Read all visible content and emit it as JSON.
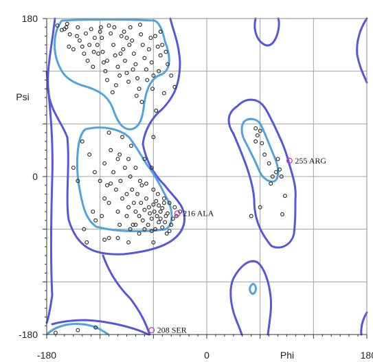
{
  "chart_data": {
    "type": "scatter",
    "title": "",
    "xlabel": "Phi",
    "ylabel": "Psi",
    "xlim": [
      -180,
      180
    ],
    "ylim": [
      -180,
      180
    ],
    "x_tick_labels": [
      {
        "value": -180,
        "label": "-180"
      },
      {
        "value": 0,
        "label": "0"
      },
      {
        "value": 180,
        "label": "180"
      }
    ],
    "y_tick_labels": [
      {
        "value": 180,
        "label": "180"
      },
      {
        "value": 0,
        "label": "0"
      },
      {
        "value": -180,
        "label": "-180"
      }
    ],
    "grid": true,
    "gridlines": [
      -120,
      -60,
      0,
      60,
      120
    ],
    "colors": {
      "favoured_contour": "#4fa3e0",
      "allowed_contour": "#5555e0",
      "residue_point": "#333333",
      "outlier_point": "#cc33cc",
      "grid": "#a0a0a0"
    },
    "series": [
      {
        "points": [
          [
            -168,
            172
          ],
          [
            -163,
            167
          ],
          [
            -160,
            168
          ],
          [
            -158,
            170
          ],
          [
            -157,
            174
          ],
          [
            -154,
            162
          ],
          [
            -155,
            148
          ],
          [
            -150,
            145
          ],
          [
            -146,
            160
          ],
          [
            -143,
            155
          ],
          [
            -140,
            148
          ],
          [
            -138,
            140
          ],
          [
            -134,
            132
          ],
          [
            -128,
            125
          ],
          [
            -123,
            150
          ],
          [
            -120,
            165
          ],
          [
            -118,
            158
          ],
          [
            -117,
            142
          ],
          [
            -114,
            120
          ],
          [
            -112,
            132
          ],
          [
            -110,
            172
          ],
          [
            -108,
            163
          ],
          [
            -105,
            150
          ],
          [
            -103,
            138
          ],
          [
            -100,
            125
          ],
          [
            -98,
            115
          ],
          [
            -96,
            160
          ],
          [
            -94,
            145
          ],
          [
            -92,
            132
          ],
          [
            -90,
            118
          ],
          [
            -88,
            108
          ],
          [
            -86,
            170
          ],
          [
            -84,
            155
          ],
          [
            -82,
            140
          ],
          [
            -80,
            128
          ],
          [
            -78,
            112
          ],
          [
            -76,
            100
          ],
          [
            -74,
            162
          ],
          [
            -72,
            150
          ],
          [
            -70,
            135
          ],
          [
            -68,
            122
          ],
          [
            -65,
            145
          ],
          [
            -62,
            130
          ],
          [
            -60,
            115
          ],
          [
            -58,
            160
          ],
          [
            -55,
            148
          ],
          [
            -52,
            138
          ],
          [
            -50,
            150
          ],
          [
            -46,
            142
          ],
          [
            -44,
            128
          ],
          [
            -40,
            115
          ],
          [
            -36,
            102
          ],
          [
            -130,
            168
          ],
          [
            -126,
            158
          ],
          [
            -122,
            140
          ],
          [
            -116,
            130
          ],
          [
            -112,
            110
          ],
          [
            -106,
            96
          ],
          [
            -102,
            104
          ],
          [
            -97,
            140
          ],
          [
            -93,
            165
          ],
          [
            -87,
            150
          ],
          [
            -83,
            122
          ],
          [
            -79,
            92
          ],
          [
            -73,
            85
          ],
          [
            -67,
            110
          ],
          [
            -61,
            100
          ],
          [
            -57,
            75
          ],
          [
            -54,
            120
          ],
          [
            -48,
            95
          ],
          [
            -145,
            170
          ],
          [
            -136,
            163
          ],
          [
            -132,
            150
          ],
          [
            -127,
            142
          ],
          [
            -119,
            170
          ],
          [
            -104,
            170
          ],
          [
            -90,
            158
          ],
          [
            -75,
            173
          ],
          [
            -63,
            158
          ],
          [
            -52,
            165
          ],
          [
            -140,
            40
          ],
          [
            -132,
            25
          ],
          [
            -126,
            5
          ],
          [
            -120,
            -5
          ],
          [
            -115,
            15
          ],
          [
            -112,
            -10
          ],
          [
            -108,
            30
          ],
          [
            -105,
            5
          ],
          [
            -102,
            -15
          ],
          [
            -100,
            20
          ],
          [
            -97,
            -5
          ],
          [
            -95,
            -25
          ],
          [
            -92,
            10
          ],
          [
            -90,
            -20
          ],
          [
            -88,
            -35
          ],
          [
            -86,
            0
          ],
          [
            -84,
            -15
          ],
          [
            -82,
            -30
          ],
          [
            -80,
            -40
          ],
          [
            -78,
            -20
          ],
          [
            -76,
            -45
          ],
          [
            -74,
            -30
          ],
          [
            -72,
            -50
          ],
          [
            -70,
            -38
          ],
          [
            -68,
            -25
          ],
          [
            -66,
            -55
          ],
          [
            -64,
            -42
          ],
          [
            -62,
            -48
          ],
          [
            -60,
            -32
          ],
          [
            -58,
            -60
          ],
          [
            -56,
            -45
          ],
          [
            -55,
            -20
          ],
          [
            -54,
            -52
          ],
          [
            -52,
            -40
          ],
          [
            -50,
            -58
          ],
          [
            -48,
            -30
          ],
          [
            -46,
            -45
          ],
          [
            -45,
            -65
          ],
          [
            -70,
            -60
          ],
          [
            -65,
            -35
          ],
          [
            -62,
            -62
          ],
          [
            -59,
            -40
          ],
          [
            -57,
            -28
          ],
          [
            -54,
            -33
          ],
          [
            -52,
            -48
          ],
          [
            -50,
            -36
          ],
          [
            -47,
            -52
          ],
          [
            -44,
            -42
          ],
          [
            -42,
            -30
          ],
          [
            -40,
            -55
          ],
          [
            -60,
            -15
          ],
          [
            -75,
            -5
          ],
          [
            -85,
            35
          ],
          [
            -95,
            45
          ],
          [
            -110,
            -30
          ],
          [
            -118,
            -45
          ],
          [
            -125,
            -50
          ],
          [
            -100,
            -40
          ],
          [
            -90,
            -45
          ],
          [
            -80,
            -55
          ],
          [
            -73,
            -10
          ],
          [
            -68,
            -8
          ],
          [
            -62,
            10
          ],
          [
            -70,
            20
          ],
          [
            -80,
            10
          ],
          [
            -88,
            20
          ],
          [
            -98,
            25
          ],
          [
            -108,
            -8
          ],
          [
            -115,
            -25
          ],
          [
            -128,
            -40
          ],
          [
            -138,
            -60
          ],
          [
            -110,
            -70
          ],
          [
            -98,
            -55
          ],
          [
            -86,
            -60
          ],
          [
            -76,
            -65
          ],
          [
            -48,
            -25
          ],
          [
            -42,
            -62
          ],
          [
            -38,
            -48
          ],
          [
            -36,
            -35
          ],
          [
            -34,
            -45
          ],
          [
            -30,
            -40
          ],
          [
            -150,
            10
          ],
          [
            -145,
            -5
          ],
          [
            -110,
            50
          ],
          [
            -60,
            45
          ],
          [
            -100,
            -70
          ],
          [
            -115,
            -72
          ],
          [
            -83,
            -55
          ],
          [
            55,
            55
          ],
          [
            57,
            47
          ],
          [
            60,
            52
          ],
          [
            62,
            38
          ],
          [
            65,
            25
          ],
          [
            70,
            15
          ],
          [
            74,
            0
          ],
          [
            72,
            -8
          ],
          [
            78,
            5
          ],
          [
            80,
            20
          ],
          [
            82,
            8
          ],
          [
            84,
            0
          ],
          [
            88,
            -22
          ],
          [
            85,
            -43
          ],
          [
            55,
            40
          ],
          [
            50,
            -45
          ],
          [
            60,
            -35
          ],
          [
            -135,
            -75
          ],
          [
            -88,
            -75
          ],
          [
            -60,
            -75
          ],
          [
            -145,
            -175
          ],
          [
            -125,
            -172
          ],
          [
            -170,
            -178
          ]
        ]
      }
    ],
    "outliers": [
      {
        "x": 93,
        "y": 18,
        "label": "255 ARG"
      },
      {
        "x": -33,
        "y": -42,
        "label": "216 ALA"
      },
      {
        "x": -62,
        "y": -175,
        "label": "208 SER"
      }
    ]
  }
}
